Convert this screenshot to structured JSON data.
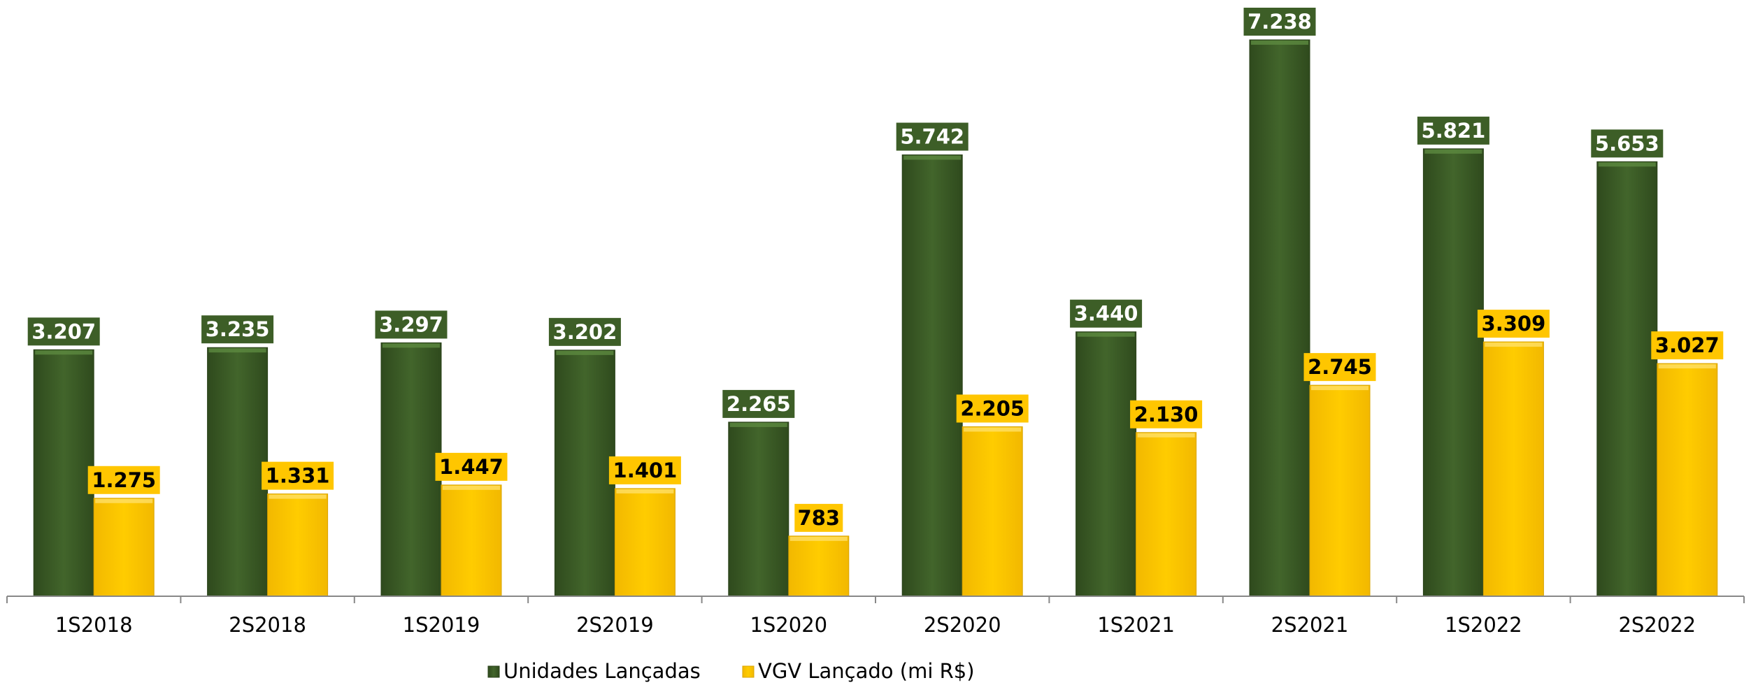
{
  "chart_data": {
    "type": "bar",
    "categories": [
      "1S2018",
      "2S2018",
      "1S2019",
      "2S2019",
      "1S2020",
      "2S2020",
      "1S2021",
      "2S2021",
      "1S2022",
      "2S2022"
    ],
    "series": [
      {
        "name": "Unidades Lançadas",
        "values": [
          3207,
          3235,
          3297,
          3202,
          2265,
          5742,
          3440,
          7238,
          5821,
          5653
        ],
        "labels": [
          "3.207",
          "3.235",
          "3.297",
          "3.202",
          "2.265",
          "5.742",
          "3.440",
          "7.238",
          "5.821",
          "5.653"
        ],
        "color": "#3d5e27",
        "label_text_color": "#ffffff"
      },
      {
        "name": "VGV Lançado (mi R$)",
        "values": [
          1275,
          1331,
          1447,
          1401,
          783,
          2205,
          2130,
          2745,
          3309,
          3027
        ],
        "labels": [
          "1.275",
          "1.331",
          "1.447",
          "1.401",
          "783",
          "2.205",
          "2.130",
          "2.745",
          "3.309",
          "3.027"
        ],
        "color": "#ffc600",
        "label_text_color": "#000000"
      }
    ],
    "legend_position": "bottom",
    "grid": false
  }
}
